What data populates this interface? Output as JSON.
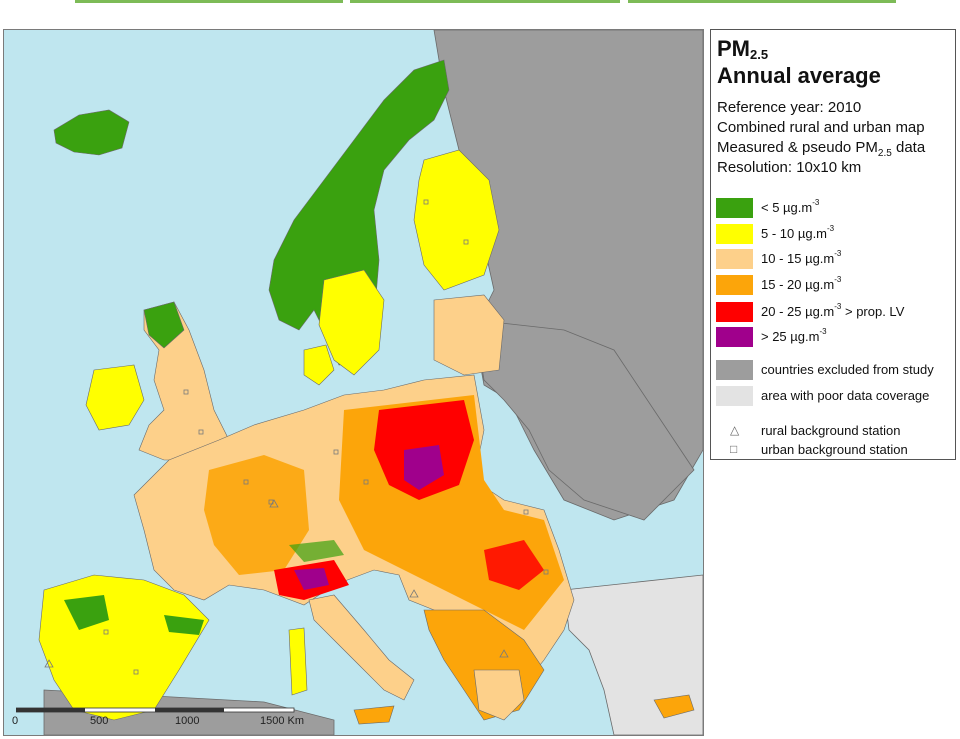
{
  "legend": {
    "title_main": "PM",
    "title_subscript": "2.5",
    "title_line2": "Annual average",
    "info": {
      "reference_year": "Reference year: 2010",
      "map_type": "Combined rural and urban map",
      "data_prefix": "Measured & pseudo PM",
      "data_subscript": "2.5",
      "data_suffix": " data",
      "resolution": "Resolution: 10x10 km"
    },
    "classes": [
      {
        "label": "<  5  µg.m",
        "sup": "-3",
        "suffix": "",
        "color": "#3aa10f"
      },
      {
        "label": "5 - 10  µg.m",
        "sup": "-3",
        "suffix": "",
        "color": "#ffff00"
      },
      {
        "label": "10 - 15  µg.m",
        "sup": "-3",
        "suffix": "",
        "color": "#fdd08a"
      },
      {
        "label": "15 - 20  µg.m",
        "sup": "-3",
        "suffix": "",
        "color": "#fca50a"
      },
      {
        "label": "20 - 25  µg.m",
        "sup": "-3",
        "suffix": " > prop. LV",
        "color": "#ff0000"
      },
      {
        "label": ">  25  µg.m",
        "sup": "-3",
        "suffix": "",
        "color": "#a0008c"
      },
      {
        "label": "countries excluded from study",
        "sup": "",
        "suffix": "",
        "color": "#9d9d9d"
      },
      {
        "label": "area with poor data coverage",
        "sup": "",
        "suffix": "",
        "color": "#e3e3e3"
      }
    ],
    "stations": [
      {
        "symbol_icon": "triangle-outline-icon",
        "symbol": "△",
        "label": "rural background station"
      },
      {
        "symbol_icon": "square-outline-icon",
        "symbol": "□",
        "label": "urban background station"
      }
    ]
  },
  "scalebar": {
    "labels": [
      "0",
      "500",
      "1000",
      "1500 Km"
    ]
  },
  "colors": {
    "sea": "#bfe6ef",
    "excluded": "#9d9d9d",
    "poor_coverage": "#e3e3e3",
    "lt5": "#3aa10f",
    "c5_10": "#ffff00",
    "c10_15": "#fdd08a",
    "c15_20": "#fca50a",
    "c20_25": "#ff0000",
    "gt25": "#a0008c",
    "border": "#6a6a6a"
  }
}
